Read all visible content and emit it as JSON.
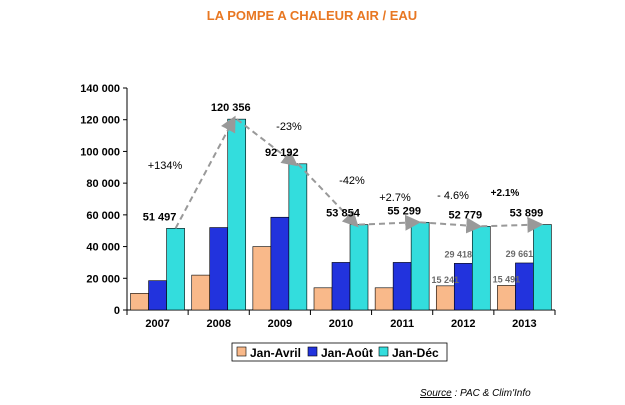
{
  "chart_data": {
    "type": "bar",
    "title": "LA POMPE A CHALEUR AIR / EAU",
    "categories": [
      "2007",
      "2008",
      "2009",
      "2010",
      "2011",
      "2012",
      "2013"
    ],
    "ylim": [
      0,
      140000
    ],
    "yticks": [
      0,
      20000,
      40000,
      60000,
      80000,
      100000,
      120000,
      140000
    ],
    "ytick_labels": [
      "0",
      "20 000",
      "40 000",
      "60 000",
      "80 000",
      "100 000",
      "120 000",
      "140 000"
    ],
    "grid": false,
    "legend_position": "bottom",
    "series": [
      {
        "name": "Jan-Avril",
        "color": "#f9b98a",
        "values": [
          10500,
          22000,
          40000,
          14000,
          14000,
          15241,
          15491
        ]
      },
      {
        "name": "Jan-Août",
        "color": "#2233dd",
        "values": [
          18500,
          52000,
          58500,
          30000,
          30000,
          29418,
          29661
        ]
      },
      {
        "name": "Jan-Déc",
        "color": "#33dddd",
        "values": [
          51497,
          120356,
          92192,
          53854,
          55299,
          52779,
          53899
        ]
      }
    ],
    "data_labels": {
      "Jan-Dec": [
        "51 497",
        "120 356",
        "92 192",
        "53 854",
        "55 299",
        "52 779",
        "53 899"
      ],
      "Jan-Avril": [
        "",
        "",
        "",
        "",
        "",
        "15 241",
        "15 491"
      ],
      "Jan-Aout": [
        "",
        "",
        "",
        "",
        "",
        "29 418",
        "29 661"
      ]
    },
    "annotations": [
      "+134%",
      "-23%",
      "-42%",
      "+2.7%",
      "- 4.6%",
      "+2.1%"
    ]
  },
  "source": {
    "label": "Source",
    "text": " : PAC & Clim'Info"
  }
}
